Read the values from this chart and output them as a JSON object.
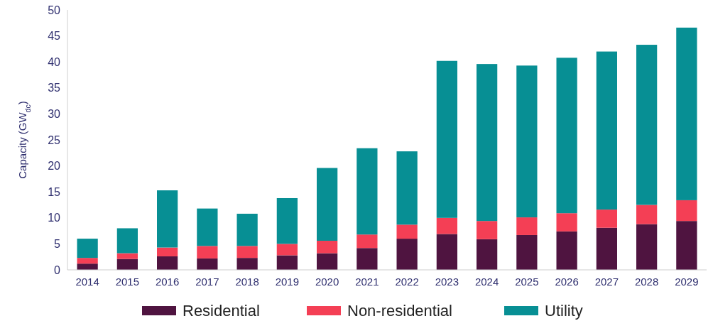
{
  "chart_data": {
    "type": "bar",
    "stacked": true,
    "ylabel": "Capacity (GW$_{dc}$)",
    "categories": [
      "2014",
      "2015",
      "2016",
      "2017",
      "2018",
      "2019",
      "2020",
      "2021",
      "2022",
      "2023",
      "2024",
      "2025",
      "2026",
      "2027",
      "2028",
      "2029"
    ],
    "series": [
      {
        "name": "Residential",
        "color": "#4f1440",
        "values": [
          1.2,
          2.1,
          2.6,
          2.2,
          2.3,
          2.8,
          3.2,
          4.2,
          6.0,
          6.9,
          5.9,
          6.7,
          7.4,
          8.1,
          8.8,
          9.4
        ]
      },
      {
        "name": "Non-residential",
        "color": "#f43f55",
        "values": [
          1.1,
          1.1,
          1.7,
          2.4,
          2.3,
          2.2,
          2.4,
          2.6,
          2.7,
          3.1,
          3.5,
          3.4,
          3.5,
          3.5,
          3.7,
          4.0
        ]
      },
      {
        "name": "Utility",
        "color": "#078f94",
        "values": [
          3.7,
          4.8,
          11.0,
          7.2,
          6.2,
          8.8,
          14.0,
          16.6,
          14.1,
          30.2,
          30.2,
          29.2,
          29.9,
          30.4,
          30.8,
          33.2
        ]
      }
    ],
    "ylim": [
      0,
      50
    ],
    "yticks": [
      0,
      5,
      10,
      15,
      20,
      25,
      30,
      35,
      40,
      45,
      50
    ],
    "legend": "bottom"
  }
}
